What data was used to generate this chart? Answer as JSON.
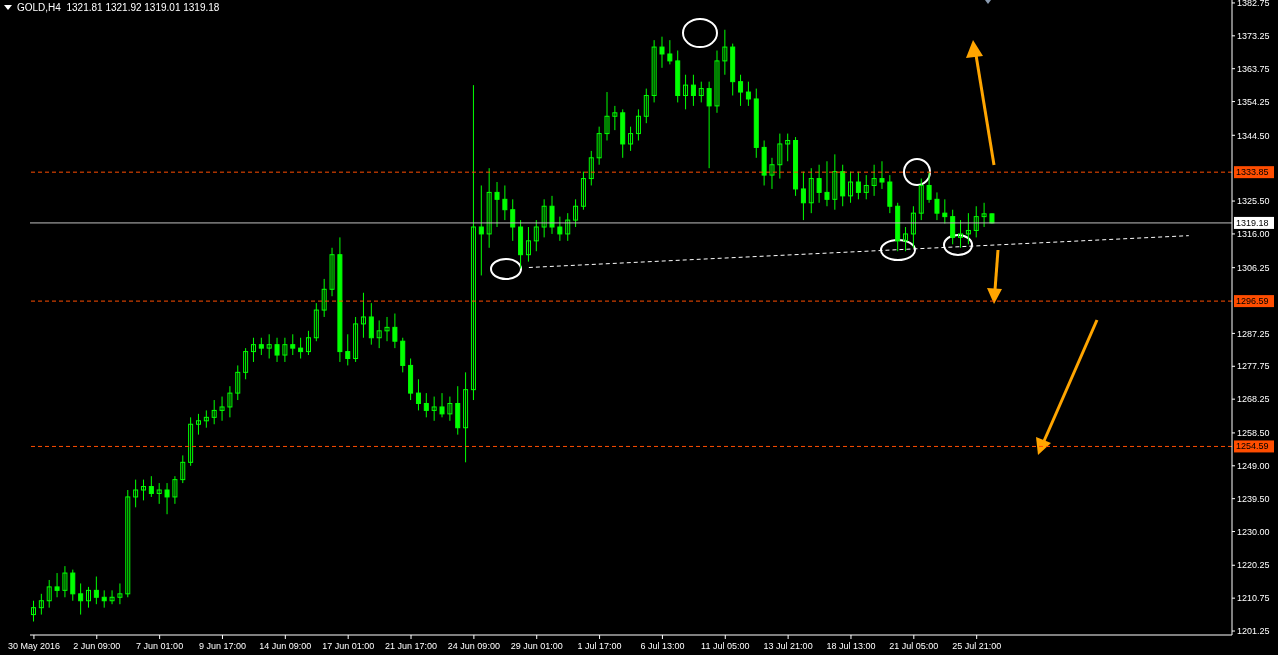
{
  "chart_data": {
    "type": "candlestick",
    "title": "GOLD,H4  1321.81 1321.92 1319.01 1319.18",
    "color": "#00ff00",
    "categories": [
      "30 May 2016",
      null,
      null,
      null,
      null,
      null,
      null,
      null,
      "2 Jun 09:00",
      null,
      null,
      null,
      null,
      null,
      null,
      null,
      "7 Jun 01:00",
      null,
      null,
      null,
      null,
      null,
      null,
      null,
      "9 Jun 17:00",
      null,
      null,
      null,
      null,
      null,
      null,
      null,
      "14 Jun 09:00",
      null,
      null,
      null,
      null,
      null,
      null,
      null,
      "17 Jun 01:00",
      null,
      null,
      null,
      null,
      null,
      null,
      null,
      "21 Jun 17:00",
      null,
      null,
      null,
      null,
      null,
      null,
      null,
      "24 Jun 09:00",
      null,
      null,
      null,
      null,
      null,
      null,
      null,
      "29 Jun 01:00",
      null,
      null,
      null,
      null,
      null,
      null,
      null,
      "1 Jul 17:00",
      null,
      null,
      null,
      null,
      null,
      null,
      null,
      "6 Jul 13:00",
      null,
      null,
      null,
      null,
      null,
      null,
      null,
      "11 Jul 05:00",
      null,
      null,
      null,
      null,
      null,
      null,
      null,
      "13 Jul 21:00",
      null,
      null,
      null,
      null,
      null,
      null,
      null,
      "18 Jul 13:00",
      null,
      null,
      null,
      null,
      null,
      null,
      null,
      "21 Jul 05:00",
      null,
      null,
      null,
      null,
      null,
      null,
      null,
      "25 Jul 21:00",
      null,
      null,
      null,
      null,
      null,
      null,
      null,
      null,
      null,
      null,
      null,
      null,
      null,
      null,
      null,
      null,
      null,
      null,
      null,
      null,
      null,
      null,
      null,
      null,
      null,
      null,
      null,
      null,
      null,
      null,
      null,
      null
    ],
    "ohlc": [
      [
        1206,
        1210,
        1204,
        1208
      ],
      [
        1208,
        1212,
        1206,
        1210
      ],
      [
        1210,
        1216,
        1208,
        1214
      ],
      [
        1214,
        1218,
        1211,
        1213
      ],
      [
        1213,
        1220,
        1211,
        1218
      ],
      [
        1218,
        1219,
        1210,
        1212
      ],
      [
        1212,
        1215,
        1206,
        1210
      ],
      [
        1210,
        1214,
        1208,
        1213
      ],
      [
        1213,
        1217,
        1209,
        1211
      ],
      [
        1211,
        1213,
        1208,
        1210
      ],
      [
        1210,
        1213,
        1209,
        1211
      ],
      [
        1211,
        1215,
        1209,
        1212
      ],
      [
        1212,
        1242,
        1211,
        1240
      ],
      [
        1240,
        1245,
        1237,
        1242
      ],
      [
        1242,
        1245,
        1239,
        1243
      ],
      [
        1243,
        1246,
        1240,
        1241
      ],
      [
        1241,
        1244,
        1238,
        1242
      ],
      [
        1242,
        1244,
        1235,
        1240
      ],
      [
        1240,
        1246,
        1238,
        1245
      ],
      [
        1245,
        1252,
        1244,
        1250
      ],
      [
        1250,
        1263,
        1249,
        1261
      ],
      [
        1261,
        1264,
        1258,
        1262
      ],
      [
        1262,
        1265,
        1260,
        1263
      ],
      [
        1263,
        1268,
        1261,
        1265
      ],
      [
        1265,
        1269,
        1262,
        1266
      ],
      [
        1266,
        1272,
        1263,
        1270
      ],
      [
        1270,
        1278,
        1268,
        1276
      ],
      [
        1276,
        1283,
        1274,
        1282
      ],
      [
        1282,
        1286,
        1279,
        1284
      ],
      [
        1284,
        1286,
        1281,
        1283
      ],
      [
        1283,
        1287,
        1280,
        1284
      ],
      [
        1284,
        1286,
        1279,
        1281
      ],
      [
        1281,
        1286,
        1279,
        1284
      ],
      [
        1284,
        1287,
        1281,
        1283
      ],
      [
        1283,
        1286,
        1280,
        1282
      ],
      [
        1282,
        1288,
        1281,
        1286
      ],
      [
        1286,
        1296,
        1285,
        1294
      ],
      [
        1294,
        1303,
        1292,
        1300
      ],
      [
        1300,
        1312,
        1298,
        1310
      ],
      [
        1310,
        1315,
        1279,
        1282
      ],
      [
        1282,
        1287,
        1278,
        1280
      ],
      [
        1280,
        1292,
        1279,
        1290
      ],
      [
        1290,
        1299,
        1286,
        1292
      ],
      [
        1292,
        1296,
        1284,
        1286
      ],
      [
        1286,
        1291,
        1283,
        1288
      ],
      [
        1288,
        1292,
        1285,
        1289
      ],
      [
        1289,
        1293,
        1283,
        1285
      ],
      [
        1285,
        1286,
        1276,
        1278
      ],
      [
        1278,
        1280,
        1268,
        1270
      ],
      [
        1270,
        1274,
        1265,
        1267
      ],
      [
        1267,
        1270,
        1263,
        1265
      ],
      [
        1265,
        1269,
        1262,
        1266
      ],
      [
        1266,
        1270,
        1263,
        1264
      ],
      [
        1264,
        1269,
        1262,
        1267
      ],
      [
        1267,
        1272,
        1258,
        1260
      ],
      [
        1260,
        1276,
        1250,
        1271
      ],
      [
        1271,
        1359,
        1268,
        1318
      ],
      [
        1318,
        1330,
        1304,
        1316
      ],
      [
        1316,
        1335,
        1312,
        1328
      ],
      [
        1328,
        1331,
        1318,
        1326
      ],
      [
        1326,
        1330,
        1320,
        1323
      ],
      [
        1323,
        1326,
        1314,
        1318
      ],
      [
        1318,
        1320,
        1306,
        1310
      ],
      [
        1310,
        1318,
        1308,
        1314
      ],
      [
        1314,
        1320,
        1311,
        1318
      ],
      [
        1318,
        1326,
        1315,
        1324
      ],
      [
        1324,
        1327,
        1316,
        1318
      ],
      [
        1318,
        1321,
        1314,
        1316
      ],
      [
        1316,
        1322,
        1314,
        1320
      ],
      [
        1320,
        1326,
        1318,
        1324
      ],
      [
        1324,
        1334,
        1323,
        1332
      ],
      [
        1332,
        1340,
        1330,
        1338
      ],
      [
        1338,
        1347,
        1336,
        1345
      ],
      [
        1345,
        1357,
        1343,
        1350
      ],
      [
        1350,
        1353,
        1346,
        1351
      ],
      [
        1351,
        1352,
        1338,
        1342
      ],
      [
        1342,
        1347,
        1340,
        1345
      ],
      [
        1345,
        1352,
        1343,
        1350
      ],
      [
        1350,
        1358,
        1348,
        1356
      ],
      [
        1356,
        1372,
        1354,
        1370
      ],
      [
        1370,
        1373,
        1364,
        1368
      ],
      [
        1368,
        1372,
        1365,
        1366
      ],
      [
        1366,
        1369,
        1354,
        1356
      ],
      [
        1356,
        1362,
        1352,
        1359
      ],
      [
        1359,
        1362,
        1353,
        1356
      ],
      [
        1356,
        1360,
        1354,
        1358
      ],
      [
        1358,
        1360,
        1335,
        1353
      ],
      [
        1353,
        1369,
        1351,
        1366
      ],
      [
        1366,
        1375,
        1362,
        1370
      ],
      [
        1370,
        1371,
        1356,
        1360
      ],
      [
        1360,
        1362,
        1353,
        1357
      ],
      [
        1357,
        1360,
        1353,
        1355
      ],
      [
        1355,
        1358,
        1338,
        1341
      ],
      [
        1341,
        1343,
        1330,
        1333
      ],
      [
        1333,
        1338,
        1329,
        1336
      ],
      [
        1336,
        1345,
        1332,
        1342
      ],
      [
        1342,
        1345,
        1337,
        1343
      ],
      [
        1343,
        1344,
        1327,
        1329
      ],
      [
        1329,
        1334,
        1320,
        1325
      ],
      [
        1325,
        1335,
        1322,
        1332
      ],
      [
        1332,
        1336,
        1325,
        1328
      ],
      [
        1328,
        1337,
        1324,
        1326
      ],
      [
        1326,
        1339,
        1323,
        1334
      ],
      [
        1334,
        1336,
        1324,
        1327
      ],
      [
        1327,
        1334,
        1325,
        1331
      ],
      [
        1331,
        1334,
        1326,
        1328
      ],
      [
        1328,
        1333,
        1326,
        1330
      ],
      [
        1330,
        1336,
        1327,
        1332
      ],
      [
        1332,
        1337,
        1329,
        1331
      ],
      [
        1331,
        1333,
        1322,
        1324
      ],
      [
        1324,
        1325,
        1311,
        1314
      ],
      [
        1314,
        1318,
        1311,
        1316
      ],
      [
        1316,
        1324,
        1312,
        1322
      ],
      [
        1322,
        1332,
        1320,
        1330
      ],
      [
        1330,
        1334,
        1325,
        1326
      ],
      [
        1326,
        1328,
        1320,
        1322
      ],
      [
        1322,
        1326,
        1319,
        1321
      ],
      [
        1321,
        1323,
        1313,
        1315
      ],
      [
        1315,
        1320,
        1312,
        1316
      ],
      [
        1316,
        1322,
        1313,
        1317
      ],
      [
        1317,
        1324,
        1315,
        1321
      ],
      [
        1321,
        1325,
        1318,
        1321.81
      ],
      [
        1321.81,
        1321.92,
        1319.01,
        1319.18
      ],
      null,
      null,
      null,
      null,
      null,
      null,
      null,
      null,
      null,
      null,
      null,
      null,
      null,
      null,
      null,
      null,
      null,
      null,
      null,
      null,
      null,
      null,
      null,
      null,
      null,
      null,
      null,
      null,
      null,
      null
    ],
    "series": [
      {
        "type": "line",
        "color": "#ffffff",
        "line_style": "dashed",
        "values": [
          null,
          null,
          null,
          null,
          null,
          null,
          null,
          null,
          null,
          null,
          null,
          null,
          null,
          null,
          null,
          null,
          null,
          null,
          null,
          null,
          null,
          null,
          null,
          null,
          null,
          null,
          null,
          null,
          null,
          null,
          null,
          null,
          null,
          null,
          null,
          null,
          null,
          null,
          null,
          null,
          null,
          null,
          null,
          null,
          null,
          null,
          null,
          null,
          null,
          null,
          null,
          null,
          null,
          null,
          null,
          null,
          null,
          null,
          null,
          null,
          null,
          null,
          null,
          1306.3,
          null,
          null,
          null,
          null,
          null,
          null,
          null,
          null,
          null,
          null,
          null,
          null,
          null,
          null,
          null,
          null,
          null,
          null,
          null,
          null,
          null,
          null,
          null,
          null,
          null,
          null,
          null,
          null,
          null,
          null,
          null,
          null,
          null,
          null,
          null,
          null,
          null,
          null,
          null,
          null,
          null,
          null,
          null,
          null,
          null,
          null,
          null,
          null,
          null,
          null,
          null,
          null,
          null,
          null,
          null,
          null,
          null,
          null,
          null,
          null,
          null,
          null,
          null,
          null,
          null,
          null,
          null,
          null,
          null,
          null,
          null,
          null,
          null,
          null,
          null,
          null,
          null,
          null,
          null,
          null,
          null,
          null,
          null,
          1315.5,
          null,
          null,
          null,
          null,
          null
        ]
      }
    ],
    "ylim": [
      1200.1,
      1383.6
    ],
    "yticks": [
      {
        "value": 1201.25,
        "label": "1201.25"
      },
      {
        "value": 1210.75,
        "label": "1210.75"
      },
      {
        "value": 1220.25,
        "label": "1220.25"
      },
      {
        "value": 1230,
        "label": "1230.00"
      },
      {
        "value": 1239.5,
        "label": "1239.50"
      },
      {
        "value": 1249,
        "label": "1249.00"
      },
      {
        "value": 1258.5,
        "label": "1258.50"
      },
      {
        "value": 1268.25,
        "label": "1268.25"
      },
      {
        "value": 1277.75,
        "label": "1277.75"
      },
      {
        "value": 1287.25,
        "label": "1287.25"
      },
      {
        "value": 1306.25,
        "label": "1306.25"
      },
      {
        "value": 1316,
        "label": "1316.00"
      },
      {
        "value": 1325.5,
        "label": "1325.50"
      },
      {
        "value": 1344.5,
        "label": "1344.50"
      },
      {
        "value": 1354.25,
        "label": "1354.25"
      },
      {
        "value": 1363.75,
        "label": "1363.75"
      },
      {
        "value": 1373.25,
        "label": "1373.25"
      },
      {
        "value": 1382.75,
        "label": "1382.75"
      }
    ],
    "ref_lines": [
      {
        "axis": "y",
        "value": 1333.85,
        "label": "1333.85",
        "color": "#ff4d00",
        "line_style": "dashed"
      },
      {
        "axis": "y",
        "value": 1319.18,
        "label": "1319.18",
        "color": "#c0c0c0",
        "line_style": "solid"
      },
      {
        "axis": "y",
        "value": 1296.59,
        "label": "1296.59",
        "color": "#ff4d00",
        "line_style": "dashed"
      },
      {
        "axis": "y",
        "value": 1254.59,
        "label": "1254.59",
        "color": "#ff4d00",
        "line_style": "dashed"
      }
    ]
  }
}
